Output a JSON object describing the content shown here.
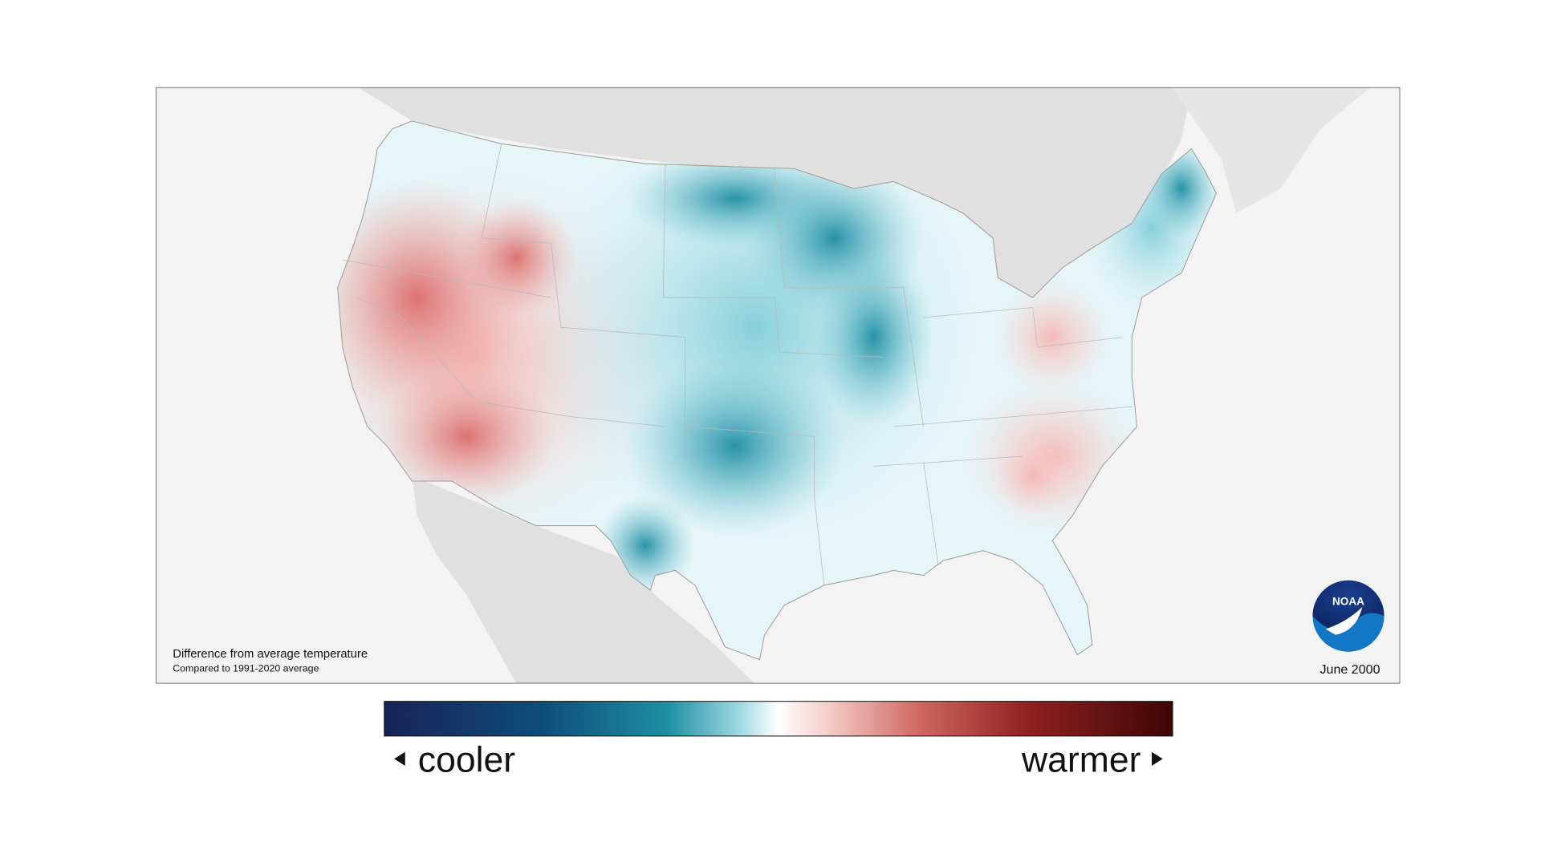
{
  "map": {
    "caption": "Difference from average temperature",
    "subcaption": "Compared to 1991-2020 average",
    "date": "June 2000",
    "logo": "NOAA"
  },
  "legend": {
    "low_label": "cooler",
    "high_label": "warmer"
  }
}
